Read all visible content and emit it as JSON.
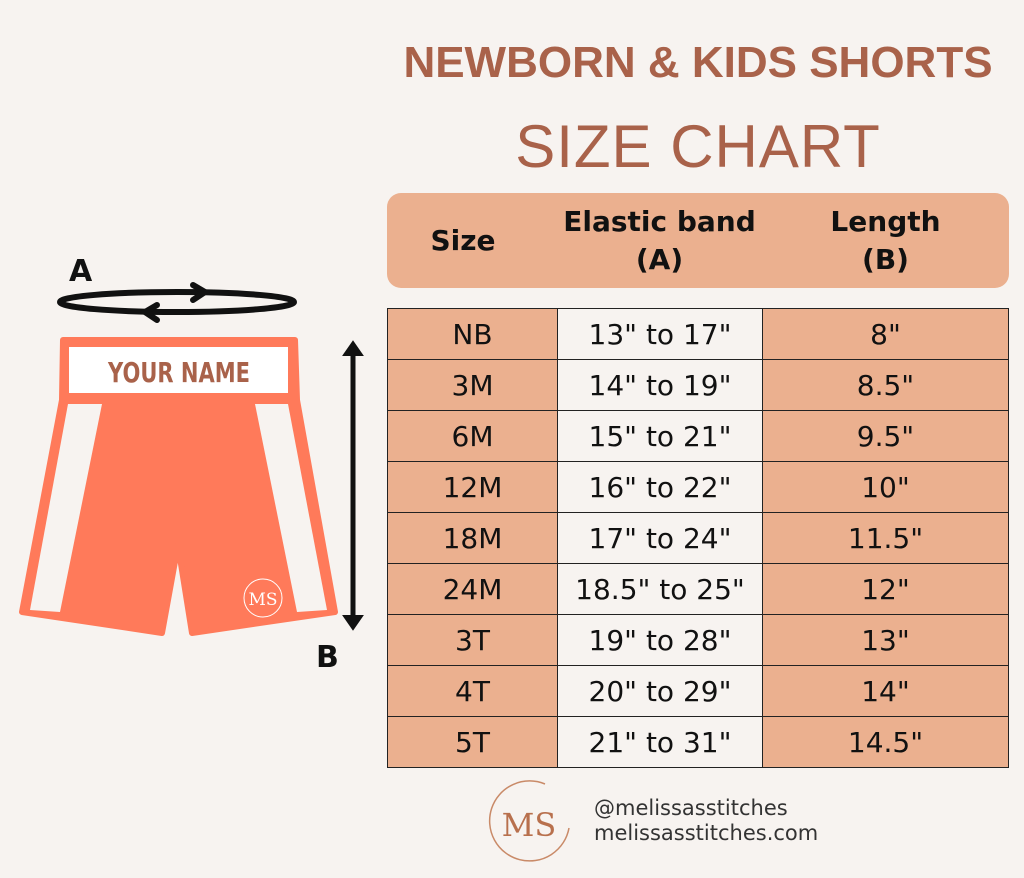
{
  "title": {
    "line1": "NEWBORN & KIDS SHORTS",
    "line2": "SIZE CHART"
  },
  "colors": {
    "background": "#f7f3f0",
    "title": "#a9624a",
    "header": "#ebb08f",
    "shorts": "#ff7a5a"
  },
  "diagram": {
    "label_a": "A",
    "label_b": "B",
    "name_text": "YOUR NAME",
    "logo": "MS"
  },
  "table": {
    "headers": [
      "Size",
      "Elastic band (A)",
      "Length (B)"
    ],
    "header_lines": [
      [
        "Size"
      ],
      [
        "Elastic band",
        "(A)"
      ],
      [
        "Length",
        "(B)"
      ]
    ],
    "rows": [
      [
        "NB",
        "13\" to 17\"",
        "8\""
      ],
      [
        "3M",
        "14\" to 19\"",
        "8.5\""
      ],
      [
        "6M",
        "15\" to 21\"",
        "9.5\""
      ],
      [
        "12M",
        "16\" to 22\"",
        "10\""
      ],
      [
        "18M",
        "17\" to 24\"",
        "11.5\""
      ],
      [
        "24M",
        "18.5\" to 25\"",
        "12\""
      ],
      [
        "3T",
        "19\" to 28\"",
        "13\""
      ],
      [
        "4T",
        "20\" to 29\"",
        "14\""
      ],
      [
        "5T",
        "21\" to 31\"",
        "14.5\""
      ]
    ]
  },
  "footer": {
    "logo": "MS",
    "handle": "@melissasstitches",
    "website": "melissasstitches.com"
  }
}
